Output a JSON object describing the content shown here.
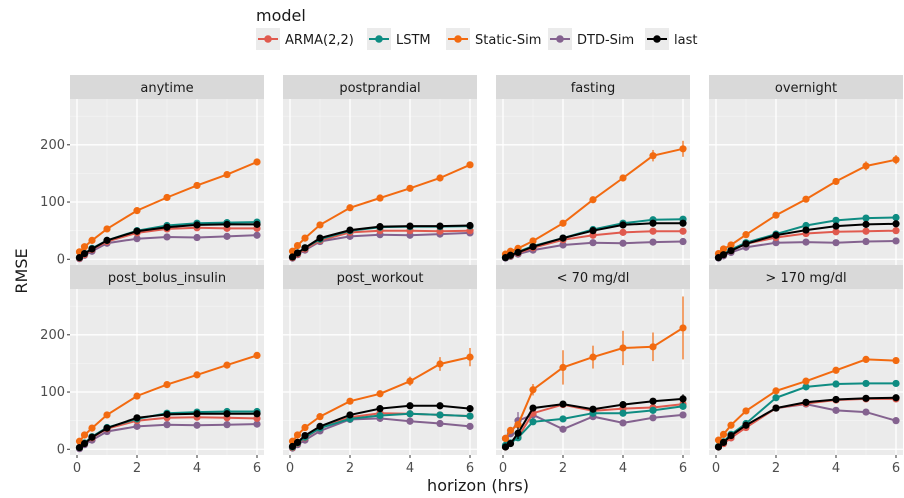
{
  "chart_data": {
    "type": "line",
    "xlabel": "horizon (hrs)",
    "ylabel": "RMSE",
    "xlim": [
      0,
      6
    ],
    "ylim": [
      -10,
      280
    ],
    "x_ticks": [
      0,
      2,
      4,
      6
    ],
    "y_ticks": [
      0,
      100,
      200
    ],
    "grid": true,
    "legend": {
      "title": "model",
      "placement": "top",
      "entries": [
        "ARMA(2,2)",
        "LSTM",
        "Static-Sim",
        "DTD-Sim",
        "last"
      ]
    },
    "colors": {
      "ARMA(2,2)": "#e05a4e",
      "LSTM": "#0e8c82",
      "Static-Sim": "#f26a10",
      "DTD-Sim": "#84628f",
      "last": "#000000"
    },
    "x": [
      0.083,
      0.25,
      0.5,
      1,
      2,
      3,
      4,
      5,
      6
    ],
    "panels": [
      {
        "title": "anytime",
        "series": [
          {
            "name": "ARMA(2,2)",
            "values": [
              2,
              8,
              17,
              31,
              46,
              53,
              55,
              54,
              54
            ]
          },
          {
            "name": "LSTM",
            "values": [
              3,
              10,
              19,
              33,
              50,
              59,
              63,
              64,
              65
            ]
          },
          {
            "name": "Static-Sim",
            "values": [
              13,
              22,
              33,
              53,
              85,
              108,
              129,
              148,
              170
            ]
          },
          {
            "name": "DTD-Sim",
            "values": [
              1,
              7,
              14,
              28,
              36,
              39,
              38,
              40,
              42
            ]
          },
          {
            "name": "last",
            "values": [
              3,
              10,
              18,
              33,
              49,
              56,
              60,
              61,
              61
            ]
          }
        ]
      },
      {
        "title": "postprandial",
        "series": [
          {
            "name": "ARMA(2,2)",
            "values": [
              3,
              9,
              18,
              33,
              47,
              50,
              50,
              49,
              50
            ]
          },
          {
            "name": "LSTM",
            "values": [
              4,
              11,
              20,
              35,
              50,
              56,
              57,
              57,
              58
            ]
          },
          {
            "name": "Static-Sim",
            "values": [
              14,
              24,
              37,
              60,
              90,
              107,
              124,
              142,
              165
            ]
          },
          {
            "name": "DTD-Sim",
            "values": [
              2,
              8,
              16,
              31,
              40,
              43,
              42,
              44,
              46
            ]
          },
          {
            "name": "last",
            "values": [
              4,
              11,
              20,
              37,
              51,
              57,
              58,
              58,
              59
            ]
          }
        ]
      },
      {
        "title": "fasting",
        "series": [
          {
            "name": "ARMA(2,2)",
            "values": [
              3,
              6,
              11,
              20,
              34,
              42,
              47,
              49,
              49
            ]
          },
          {
            "name": "LSTM",
            "values": [
              3,
              7,
              13,
              23,
              37,
              52,
              63,
              69,
              70
            ]
          },
          {
            "name": "Static-Sim",
            "values": [
              9,
              14,
              19,
              32,
              63,
              104,
              142,
              181,
              193
            ],
            "error": [
              0,
              0,
              0,
              0,
              0,
              5,
              5,
              10,
              14
            ]
          },
          {
            "name": "DTD-Sim",
            "values": [
              2,
              5,
              9,
              16,
              25,
              29,
              28,
              30,
              31
            ]
          },
          {
            "name": "last",
            "values": [
              3,
              7,
              12,
              22,
              37,
              50,
              60,
              63,
              63
            ]
          }
        ]
      },
      {
        "title": "overnight",
        "series": [
          {
            "name": "ARMA(2,2)",
            "values": [
              3,
              8,
              15,
              27,
              38,
              45,
              48,
              49,
              50
            ]
          },
          {
            "name": "LSTM",
            "values": [
              3,
              9,
              17,
              29,
              44,
              59,
              68,
              72,
              73
            ]
          },
          {
            "name": "Static-Sim",
            "values": [
              10,
              18,
              25,
              43,
              77,
              105,
              136,
              163,
              174
            ],
            "error": [
              0,
              0,
              0,
              0,
              0,
              0,
              5,
              8,
              8
            ]
          },
          {
            "name": "DTD-Sim",
            "values": [
              2,
              6,
              12,
              21,
              29,
              30,
              29,
              31,
              32
            ]
          },
          {
            "name": "last",
            "values": [
              3,
              8,
              15,
              27,
              42,
              51,
              58,
              61,
              62
            ]
          }
        ]
      },
      {
        "title": "post_bolus_insulin",
        "series": [
          {
            "name": "ARMA(2,2)",
            "values": [
              3,
              10,
              20,
              36,
              50,
              55,
              56,
              55,
              54
            ]
          },
          {
            "name": "LSTM",
            "values": [
              3,
              11,
              22,
              38,
              53,
              63,
              65,
              66,
              66
            ]
          },
          {
            "name": "Static-Sim",
            "values": [
              14,
              25,
              37,
              60,
              93,
              113,
              130,
              147,
              164
            ]
          },
          {
            "name": "DTD-Sim",
            "values": [
              1,
              8,
              16,
              31,
              40,
              43,
              42,
              43,
              44
            ]
          },
          {
            "name": "last",
            "values": [
              3,
              10,
              21,
              37,
              55,
              61,
              62,
              62,
              62
            ]
          }
        ]
      },
      {
        "title": "post_workout",
        "series": [
          {
            "name": "ARMA(2,2)",
            "values": [
              3,
              10,
              20,
              37,
              56,
              63,
              62,
              60,
              58
            ]
          },
          {
            "name": "LSTM",
            "values": [
              4,
              11,
              21,
              37,
              53,
              59,
              62,
              60,
              58
            ]
          },
          {
            "name": "Static-Sim",
            "values": [
              14,
              25,
              38,
              57,
              84,
              97,
              119,
              149,
              161
            ],
            "error": [
              0,
              0,
              0,
              0,
              0,
              0,
              8,
              12,
              16
            ]
          },
          {
            "name": "DTD-Sim",
            "values": [
              2,
              8,
              16,
              32,
              52,
              54,
              49,
              45,
              40
            ]
          },
          {
            "name": "last",
            "values": [
              5,
              12,
              24,
              40,
              60,
              71,
              76,
              76,
              71
            ]
          }
        ]
      },
      {
        "title": "< 70 mg/dl",
        "series": [
          {
            "name": "ARMA(2,2)",
            "values": [
              4,
              11,
              21,
              63,
              78,
              67,
              71,
              73,
              79
            ]
          },
          {
            "name": "LSTM",
            "values": [
              7,
              11,
              20,
              48,
              53,
              63,
              63,
              68,
              75
            ]
          },
          {
            "name": "Static-Sim",
            "values": [
              19,
              33,
              43,
              104,
              143,
              161,
              177,
              179,
              212
            ],
            "error": [
              0,
              0,
              0,
              10,
              30,
              20,
              30,
              25,
              55
            ]
          },
          {
            "name": "DTD-Sim",
            "values": [
              19,
              27,
              50,
              60,
              35,
              57,
              46,
              55,
              60
            ],
            "error": [
              0,
              0,
              15,
              0,
              0,
              0,
              0,
              0,
              0
            ]
          },
          {
            "name": "last",
            "values": [
              4,
              10,
              28,
              72,
              79,
              70,
              78,
              84,
              88
            ],
            "error": [
              0,
              0,
              10,
              0,
              0,
              0,
              0,
              0,
              8
            ]
          }
        ]
      },
      {
        "title": "> 170 mg/dl",
        "series": [
          {
            "name": "ARMA(2,2)",
            "values": [
              4,
              10,
              20,
              38,
              72,
              80,
              86,
              88,
              88
            ]
          },
          {
            "name": "LSTM",
            "values": [
              5,
              13,
              26,
              45,
              90,
              109,
              114,
              115,
              115
            ]
          },
          {
            "name": "Static-Sim",
            "values": [
              16,
              26,
              42,
              67,
              102,
              119,
              138,
              157,
              155
            ],
            "error": [
              0,
              0,
              0,
              0,
              0,
              0,
              0,
              6,
              5
            ]
          },
          {
            "name": "DTD-Sim",
            "values": [
              4,
              10,
              20,
              39,
              72,
              79,
              68,
              65,
              50
            ]
          },
          {
            "name": "last",
            "values": [
              4,
              12,
              24,
              42,
              72,
              82,
              87,
              89,
              90
            ]
          }
        ]
      }
    ]
  }
}
